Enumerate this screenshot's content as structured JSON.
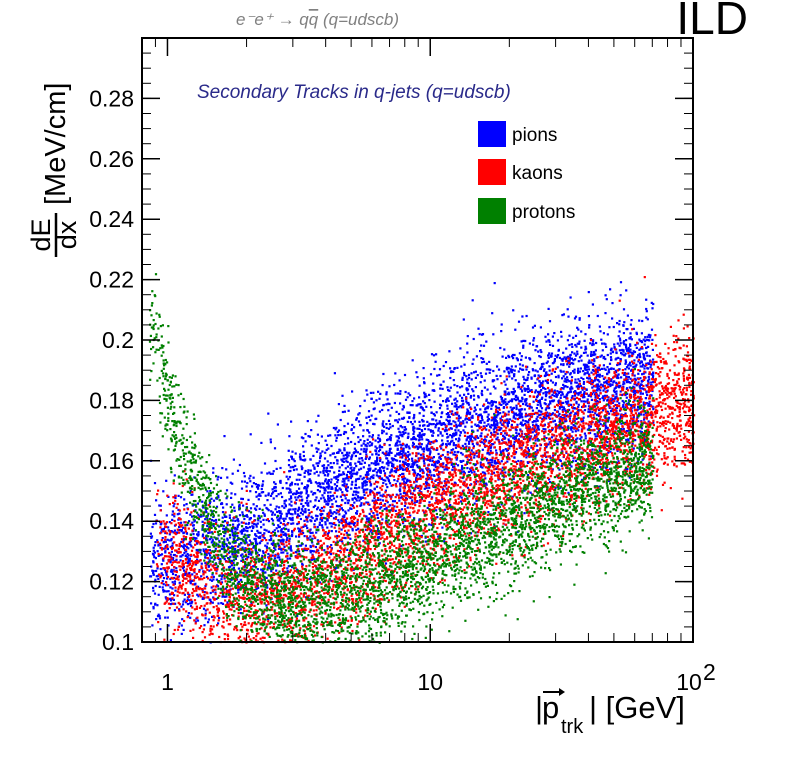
{
  "chart_data": {
    "type": "scatter",
    "title": "e⁻e⁺ → qq̅ (q=udscb)",
    "title_parts": {
      "reaction": "e⁻e⁺ → q",
      "qbar": "q",
      "suffix": "(q=udscb)"
    },
    "experiment_label": "ILD",
    "annotation": "Secondary Tracks in q-jets (q=udscb)",
    "xlabel": "|p⃗ trk| [GeV]",
    "xlabel_parts": {
      "bar": "|",
      "p": "p",
      "sub": "trk",
      "unit": "| [GeV]"
    },
    "ylabel": "dE/dx [MeV/cm]",
    "ylabel_parts": {
      "num": "dE",
      "den": "dx",
      "unit": "[MeV/cm]"
    },
    "xscale": "log",
    "xlim": [
      0.8,
      100
    ],
    "ylim": [
      0.1,
      0.3
    ],
    "xticks": [
      {
        "value": 1,
        "label": "1"
      },
      {
        "value": 10,
        "label": "10"
      },
      {
        "value": 100,
        "label": "10",
        "sup": "2"
      }
    ],
    "yticks": [
      {
        "value": 0.1,
        "label": "0.1"
      },
      {
        "value": 0.12,
        "label": "0.12"
      },
      {
        "value": 0.14,
        "label": "0.14"
      },
      {
        "value": 0.16,
        "label": "0.16"
      },
      {
        "value": 0.18,
        "label": "0.18"
      },
      {
        "value": 0.2,
        "label": "0.2"
      },
      {
        "value": 0.22,
        "label": "0.22"
      },
      {
        "value": 0.24,
        "label": "0.24"
      },
      {
        "value": 0.26,
        "label": "0.26"
      },
      {
        "value": 0.28,
        "label": "0.28"
      }
    ],
    "legend_position": "top-right",
    "series": [
      {
        "name": "pions",
        "color": "#0000ff",
        "width": 0.012,
        "ridge": [
          [
            0.8,
            0.128
          ],
          [
            1.0,
            0.127
          ],
          [
            1.3,
            0.128
          ],
          [
            2,
            0.135
          ],
          [
            3,
            0.142
          ],
          [
            5,
            0.153
          ],
          [
            10,
            0.165
          ],
          [
            20,
            0.176
          ],
          [
            40,
            0.183
          ],
          [
            70,
            0.187
          ]
        ],
        "xrange": [
          0.85,
          70
        ]
      },
      {
        "name": "kaons",
        "color": "#ff0000",
        "width": 0.011,
        "ridge": [
          [
            0.85,
            0.135
          ],
          [
            1.0,
            0.128
          ],
          [
            1.5,
            0.117
          ],
          [
            2,
            0.114
          ],
          [
            3,
            0.118
          ],
          [
            5,
            0.128
          ],
          [
            10,
            0.145
          ],
          [
            20,
            0.158
          ],
          [
            40,
            0.168
          ],
          [
            70,
            0.175
          ],
          [
            100,
            0.18
          ]
        ],
        "xrange": [
          0.9,
          100
        ]
      },
      {
        "name": "protons",
        "color": "#008000",
        "width": 0.01,
        "ridge": [
          [
            0.85,
            0.21
          ],
          [
            1.0,
            0.18
          ],
          [
            1.2,
            0.158
          ],
          [
            1.6,
            0.132
          ],
          [
            2,
            0.12
          ],
          [
            3,
            0.112
          ],
          [
            5,
            0.116
          ],
          [
            10,
            0.128
          ],
          [
            20,
            0.14
          ],
          [
            40,
            0.152
          ],
          [
            70,
            0.16
          ]
        ],
        "xrange": [
          0.85,
          70
        ]
      }
    ]
  }
}
